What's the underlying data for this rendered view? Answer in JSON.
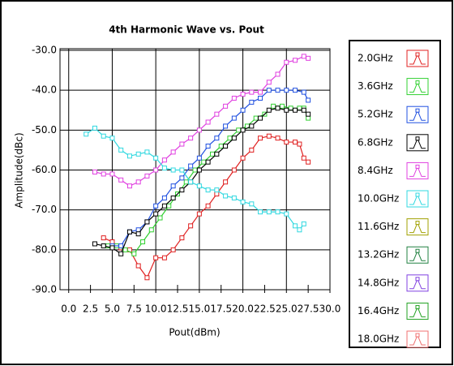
{
  "chart_data": {
    "type": "line",
    "title": "4th Harmonic Wave vs. Pout",
    "xlabel": "Pout(dBm)",
    "ylabel": "Amplitude(dBc)",
    "xlim": [
      -1,
      30
    ],
    "ylim": [
      -90,
      -30
    ],
    "xticks": [
      {
        "value": 0,
        "label": "0.0"
      },
      {
        "value": 2.5,
        "label": "2.5"
      },
      {
        "value": 5,
        "label": "5.0"
      },
      {
        "value": 7.5,
        "label": "7.5"
      },
      {
        "value": 10,
        "label": "10.0"
      },
      {
        "value": 12.5,
        "label": "12.5"
      },
      {
        "value": 15,
        "label": "15.0"
      },
      {
        "value": 17.5,
        "label": "17.5"
      },
      {
        "value": 20,
        "label": "20.0"
      },
      {
        "value": 22.5,
        "label": "22.5"
      },
      {
        "value": 25,
        "label": "25.0"
      },
      {
        "value": 27.5,
        "label": "27.5"
      },
      {
        "value": 30,
        "label": "30.0"
      }
    ],
    "yticks": [
      {
        "value": -30,
        "label": "-30.0"
      },
      {
        "value": -40,
        "label": "-40.0"
      },
      {
        "value": -50,
        "label": "-50.0"
      },
      {
        "value": -60,
        "label": "-60.0"
      },
      {
        "value": -70,
        "label": "-70.0"
      },
      {
        "value": -80,
        "label": "-80.0"
      },
      {
        "value": -90,
        "label": "-90.0"
      }
    ],
    "grid": true,
    "legend": "right",
    "series": [
      {
        "name": "2.0GHz",
        "color": "#e02020",
        "x": [
          4,
          5,
          6,
          7,
          8,
          9,
          10,
          11,
          12,
          13,
          14,
          15,
          16,
          17,
          18,
          19,
          20,
          21,
          22,
          23,
          24,
          25,
          26,
          26.5,
          27,
          27.5
        ],
        "values": [
          -77,
          -78,
          -79.5,
          -80,
          -84,
          -87,
          -82,
          -82,
          -80,
          -77,
          -74,
          -71,
          -69,
          -66,
          -63,
          -60,
          -57,
          -55,
          -52,
          -51.5,
          -52,
          -53,
          -53,
          -53.5,
          -57,
          -58
        ]
      },
      {
        "name": "3.6GHz",
        "color": "#30d030",
        "x": [
          4.5,
          5.5,
          6.5,
          7.5,
          8.5,
          9.5,
          10.5,
          11.5,
          12.5,
          13.5,
          14.5,
          15.5,
          16.5,
          17.5,
          18.5,
          19.5,
          20.5,
          21.5,
          22.5,
          23.5,
          24.5,
          25.5,
          26.5,
          27,
          27.5
        ],
        "values": [
          -79,
          -79,
          -80,
          -81,
          -78,
          -75,
          -72,
          -69,
          -66,
          -63,
          -60,
          -58,
          -56,
          -54,
          -52,
          -50,
          -49,
          -47,
          -46,
          -44,
          -44,
          -44.5,
          -44.5,
          -44.5,
          -47
        ]
      },
      {
        "name": "5.2GHz",
        "color": "#2050e0",
        "x": [
          5,
          6,
          7,
          8,
          9,
          10,
          11,
          12,
          13,
          14,
          15,
          16,
          17,
          18,
          19,
          20,
          21,
          22,
          23,
          24,
          25,
          26,
          27,
          27.5
        ],
        "values": [
          -79,
          -79,
          -75.5,
          -75,
          -73,
          -69,
          -67,
          -64,
          -62,
          -59,
          -57,
          -54,
          -52,
          -49,
          -47,
          -45,
          -43,
          -42,
          -40,
          -40,
          -40,
          -40,
          -40.5,
          -42.5
        ]
      },
      {
        "name": "6.8GHz",
        "color": "#000000",
        "x": [
          3,
          4,
          5,
          6,
          7,
          8,
          9,
          10,
          11,
          12,
          13,
          14,
          15,
          16,
          17,
          18,
          19,
          20,
          21,
          22,
          23,
          24,
          25,
          26,
          27,
          27.5
        ],
        "values": [
          -78.5,
          -79,
          -79.5,
          -81,
          -75.5,
          -76,
          -73,
          -71,
          -69,
          -67,
          -65,
          -63,
          -60,
          -58,
          -56,
          -54,
          -52,
          -50,
          -49,
          -47,
          -45,
          -44.5,
          -45,
          -45,
          -45,
          -46
        ]
      },
      {
        "name": "8.4GHz",
        "color": "#e040e0",
        "x": [
          3,
          4,
          5,
          6,
          7,
          8,
          9,
          10,
          11,
          12,
          13,
          14,
          15,
          16,
          17,
          18,
          19,
          20,
          21,
          22,
          23,
          24,
          25,
          26,
          27,
          27.5
        ],
        "values": [
          -60.5,
          -61,
          -61,
          -62.5,
          -64,
          -63,
          -61.5,
          -60,
          -57.5,
          -55.5,
          -53.5,
          -52,
          -50,
          -48,
          -46,
          -44,
          -42,
          -41,
          -40.5,
          -40.5,
          -38,
          -36,
          -33,
          -32.5,
          -31.5,
          -32
        ]
      },
      {
        "name": "10.0GHz",
        "color": "#30d8e0",
        "x": [
          2,
          3,
          4,
          5,
          6,
          7,
          8,
          9,
          10,
          11,
          12,
          13,
          14,
          15,
          16,
          17,
          18,
          19,
          20,
          21,
          22,
          23,
          24,
          25,
          26,
          26.5,
          27
        ],
        "values": [
          -51,
          -49.5,
          -51.5,
          -52,
          -55,
          -56.5,
          -56,
          -55.5,
          -57,
          -59.5,
          -60,
          -60,
          -63,
          -64,
          -65,
          -65,
          -66.5,
          -67,
          -68,
          -68.5,
          -70.5,
          -70.5,
          -70.5,
          -71,
          -74,
          -75,
          -73.5
        ]
      },
      {
        "name": "11.6GHz",
        "color": "#a0a000",
        "x": [],
        "values": []
      },
      {
        "name": "13.2GHz",
        "color": "#208040",
        "x": [],
        "values": []
      },
      {
        "name": "14.8GHz",
        "color": "#8040e0",
        "x": [],
        "values": []
      },
      {
        "name": "16.4GHz",
        "color": "#20a020",
        "x": [],
        "values": []
      },
      {
        "name": "18.0GHz",
        "color": "#f07070",
        "x": [],
        "values": []
      }
    ]
  }
}
